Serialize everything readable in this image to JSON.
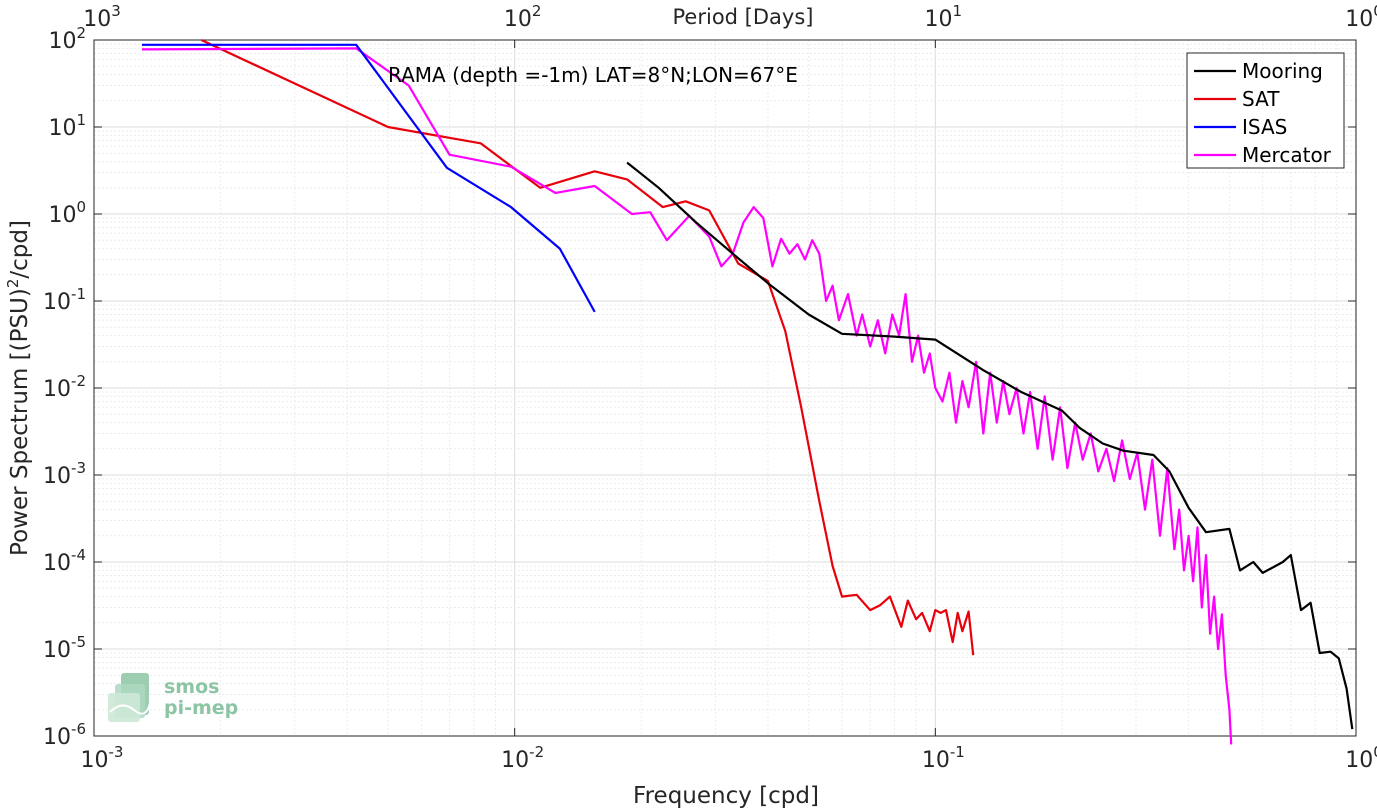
{
  "chart_data": {
    "type": "line",
    "annotation": "RAMA (depth =-1m) LAT=8°N;LON=67°E",
    "xlabel": "Frequency [cpd]",
    "ylabel": "Power Spectrum [(PSU)",
    "ylabel_sup": "2",
    "ylabel_tail": "/cpd]",
    "top_axis_title": "Period [Days]",
    "x_scale": "log",
    "y_scale": "log",
    "xlim": [
      0.001,
      1
    ],
    "ylim": [
      1e-06,
      100
    ],
    "grid": true,
    "legend_position": "top-right",
    "x_ticks": [
      {
        "base": "10",
        "exp": "-3"
      },
      {
        "base": "10",
        "exp": "-2"
      },
      {
        "base": "10",
        "exp": "-1"
      },
      {
        "base": "10",
        "exp": "0"
      }
    ],
    "y_ticks": [
      {
        "base": "10",
        "exp": "-6"
      },
      {
        "base": "10",
        "exp": "-5"
      },
      {
        "base": "10",
        "exp": "-4"
      },
      {
        "base": "10",
        "exp": "-3"
      },
      {
        "base": "10",
        "exp": "-2"
      },
      {
        "base": "10",
        "exp": "-1"
      },
      {
        "base": "10",
        "exp": "0"
      },
      {
        "base": "10",
        "exp": "1"
      },
      {
        "base": "10",
        "exp": "2"
      }
    ],
    "top_ticks": [
      {
        "base": "10",
        "exp": "3"
      },
      {
        "base": "10",
        "exp": "2"
      },
      {
        "base": "10",
        "exp": "1"
      },
      {
        "base": "10",
        "exp": "0"
      }
    ],
    "series": [
      {
        "name": "Mooring",
        "color": "#000000",
        "x": [
          0.0185,
          0.022,
          0.027,
          0.033,
          0.04,
          0.05,
          0.06,
          0.08,
          0.1,
          0.13,
          0.16,
          0.2,
          0.22,
          0.25,
          0.28,
          0.33,
          0.36,
          0.4,
          0.44,
          0.5,
          0.53,
          0.57,
          0.6,
          0.67,
          0.7,
          0.74,
          0.78,
          0.82,
          0.87,
          0.91,
          0.95,
          0.98
        ],
        "y": [
          3.9,
          2.0,
          0.8,
          0.35,
          0.16,
          0.07,
          0.042,
          0.039,
          0.036,
          0.016,
          0.009,
          0.0055,
          0.0035,
          0.0023,
          0.0019,
          0.0017,
          0.0011,
          0.00042,
          0.00022,
          0.00024,
          8e-05,
          0.0001,
          7.5e-05,
          0.0001,
          0.00012,
          2.8e-05,
          3.4e-05,
          9e-06,
          9.3e-06,
          7.8e-06,
          3.5e-06,
          1.2e-06
        ]
      },
      {
        "name": "SAT",
        "color": "#e8000b",
        "x": [
          0.0018,
          0.005,
          0.0083,
          0.0115,
          0.0155,
          0.0185,
          0.0225,
          0.0255,
          0.029,
          0.034,
          0.04,
          0.044,
          0.048,
          0.053,
          0.057,
          0.06,
          0.065,
          0.07,
          0.074,
          0.078,
          0.083,
          0.086,
          0.09,
          0.093,
          0.097,
          0.1,
          0.103,
          0.106,
          0.11,
          0.113,
          0.116,
          0.12,
          0.123
        ],
        "y": [
          100,
          10,
          6.5,
          2.0,
          3.1,
          2.5,
          1.2,
          1.4,
          1.1,
          0.27,
          0.17,
          0.045,
          0.006,
          0.0005,
          9e-05,
          4e-05,
          4.2e-05,
          2.8e-05,
          3.2e-05,
          4e-05,
          1.8e-05,
          3.6e-05,
          2.2e-05,
          2.6e-05,
          1.6e-05,
          2.8e-05,
          2.6e-05,
          2.8e-05,
          1.2e-05,
          2.6e-05,
          1.6e-05,
          2.7e-05,
          8.5e-06
        ]
      },
      {
        "name": "ISAS",
        "color": "#0000ff",
        "x": [
          0.0013,
          0.0042,
          0.0069,
          0.0098,
          0.0128,
          0.0155
        ],
        "y": [
          88,
          88,
          3.4,
          1.2,
          0.4,
          0.075
        ]
      },
      {
        "name": "Mercator",
        "color": "#ff00ff",
        "x": [
          0.0013,
          0.0042,
          0.0056,
          0.007,
          0.0098,
          0.0125,
          0.0155,
          0.019,
          0.021,
          0.023,
          0.026,
          0.029,
          0.031,
          0.033,
          0.035,
          0.037,
          0.039,
          0.041,
          0.043,
          0.045,
          0.047,
          0.049,
          0.051,
          0.053,
          0.055,
          0.057,
          0.059,
          0.062,
          0.065,
          0.067,
          0.07,
          0.073,
          0.076,
          0.079,
          0.082,
          0.085,
          0.088,
          0.091,
          0.094,
          0.097,
          0.1,
          0.104,
          0.108,
          0.112,
          0.116,
          0.12,
          0.125,
          0.13,
          0.135,
          0.14,
          0.145,
          0.15,
          0.156,
          0.162,
          0.168,
          0.175,
          0.182,
          0.19,
          0.198,
          0.206,
          0.215,
          0.224,
          0.234,
          0.244,
          0.255,
          0.266,
          0.278,
          0.29,
          0.302,
          0.315,
          0.328,
          0.342,
          0.356,
          0.37,
          0.38,
          0.39,
          0.4,
          0.41,
          0.42,
          0.43,
          0.44,
          0.45,
          0.46,
          0.47,
          0.48,
          0.49,
          0.5,
          0.505
        ],
        "y": [
          78,
          80,
          30,
          4.8,
          3.5,
          1.75,
          2.1,
          1.0,
          1.05,
          0.5,
          0.95,
          0.55,
          0.25,
          0.35,
          0.8,
          1.2,
          0.9,
          0.25,
          0.52,
          0.35,
          0.45,
          0.3,
          0.5,
          0.35,
          0.1,
          0.15,
          0.06,
          0.12,
          0.04,
          0.07,
          0.03,
          0.06,
          0.025,
          0.07,
          0.04,
          0.12,
          0.02,
          0.04,
          0.015,
          0.025,
          0.01,
          0.007,
          0.015,
          0.004,
          0.012,
          0.006,
          0.02,
          0.003,
          0.015,
          0.004,
          0.012,
          0.005,
          0.01,
          0.003,
          0.009,
          0.002,
          0.008,
          0.0015,
          0.006,
          0.0012,
          0.004,
          0.0015,
          0.003,
          0.0011,
          0.002,
          0.00085,
          0.0025,
          0.0009,
          0.0018,
          0.0004,
          0.0015,
          0.0002,
          0.0012,
          0.00014,
          0.0004,
          8e-05,
          0.0002,
          6e-05,
          0.00025,
          3e-05,
          0.00012,
          1.5e-05,
          4e-05,
          1e-05,
          2.5e-05,
          5e-06,
          2e-06,
          8e-07
        ]
      }
    ]
  },
  "logo": {
    "line1": "smos",
    "line2": "pi-mep",
    "color": "#8cc5a4"
  }
}
